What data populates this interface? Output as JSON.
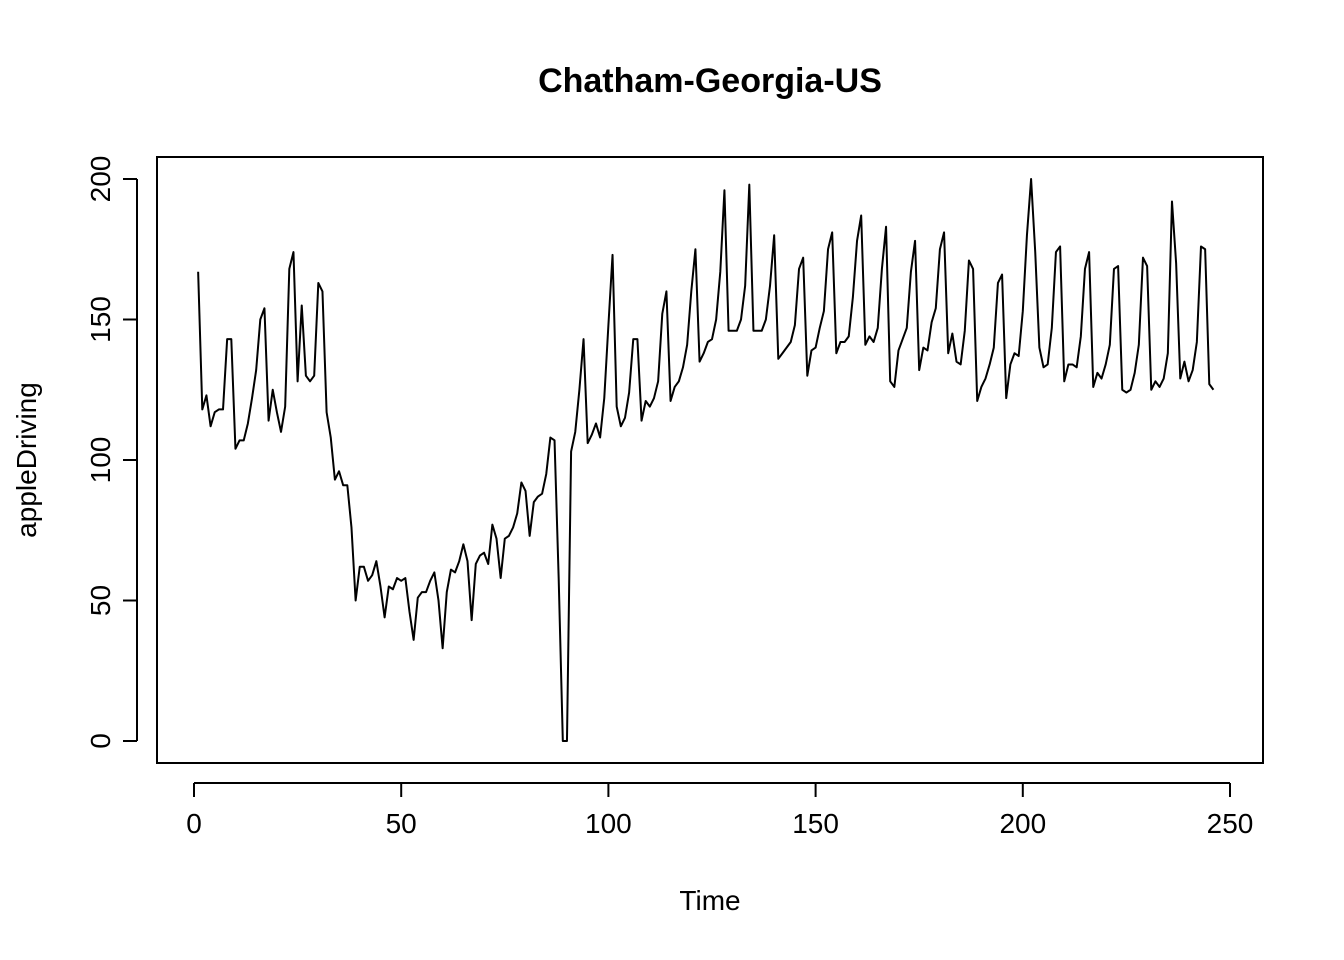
{
  "chart_data": {
    "type": "line",
    "title": "Chatham-Georgia-US",
    "xlabel": "Time",
    "ylabel": "appleDriving",
    "xlim": [
      0,
      250
    ],
    "ylim": [
      0,
      200
    ],
    "x_ticks": [
      "0",
      "50",
      "100",
      "150",
      "200",
      "250"
    ],
    "y_ticks": [
      "0",
      "50",
      "100",
      "150",
      "200"
    ],
    "grid": false,
    "legend": "none",
    "line_color": "#000000",
    "series": [
      {
        "x_start": 1,
        "values": [
          167,
          118,
          123,
          112,
          117,
          118,
          118,
          143,
          143,
          104,
          107,
          107,
          113,
          122,
          132,
          150,
          154,
          114,
          125,
          117,
          110,
          119,
          168,
          174,
          128,
          155,
          130,
          128,
          130,
          163,
          160,
          117,
          108,
          93,
          96,
          91,
          91,
          76,
          50,
          62,
          62,
          57,
          59,
          64,
          55,
          44,
          55,
          54,
          58,
          57,
          58,
          46,
          36,
          51,
          53,
          53,
          57,
          60,
          50,
          33,
          53,
          61,
          60,
          64,
          70,
          64,
          43,
          63,
          66,
          67,
          63,
          77,
          72,
          58,
          72,
          73,
          76,
          81,
          92,
          89,
          73,
          85,
          87,
          88,
          95,
          108,
          107,
          58,
          0,
          0,
          103,
          110,
          125,
          143,
          106,
          109,
          113,
          108,
          122,
          148,
          173,
          119,
          112,
          115,
          124,
          143,
          143,
          114,
          121,
          119,
          122,
          128,
          152,
          160,
          121,
          126,
          128,
          133,
          141,
          160,
          175,
          135,
          138,
          142,
          143,
          150,
          167,
          196,
          146,
          146,
          146,
          150,
          162,
          198,
          146,
          146,
          146,
          150,
          162,
          180,
          136,
          138,
          140,
          142,
          148,
          168,
          172,
          130,
          139,
          140,
          147,
          153,
          175,
          181,
          138,
          142,
          142,
          144,
          158,
          178,
          187,
          141,
          144,
          142,
          147,
          168,
          183,
          128,
          126,
          139,
          143,
          147,
          167,
          178,
          132,
          140,
          139,
          149,
          154,
          175,
          181,
          138,
          145,
          135,
          134,
          146,
          171,
          168,
          121,
          126,
          129,
          134,
          140,
          163,
          166,
          122,
          134,
          138,
          137,
          153,
          180,
          200,
          174,
          140,
          133,
          134,
          147,
          174,
          176,
          128,
          134,
          134,
          133,
          144,
          168,
          174,
          126,
          131,
          129,
          134,
          141,
          168,
          169,
          125,
          124,
          125,
          131,
          141,
          172,
          169,
          125,
          128,
          126,
          129,
          138,
          192,
          170,
          129,
          135,
          128,
          132,
          142,
          176,
          175,
          127,
          125
        ]
      }
    ]
  }
}
